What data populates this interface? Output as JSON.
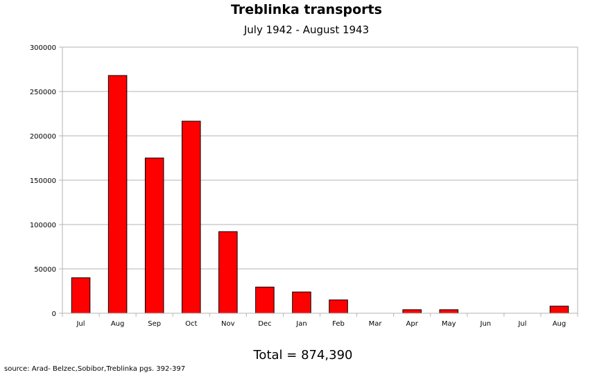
{
  "chart_data": {
    "type": "bar",
    "title": "Treblinka transports",
    "subtitle": "July 1942 - August 1943",
    "xlabel": "",
    "ylabel": "",
    "categories": [
      "Jul",
      "Aug",
      "Sep",
      "Oct",
      "Nov",
      "Dec",
      "Jan",
      "Feb",
      "Mar",
      "Apr",
      "May",
      "Jun",
      "Jul",
      "Aug"
    ],
    "values": [
      40000,
      268000,
      175000,
      216500,
      92000,
      29500,
      24000,
      15000,
      0,
      4000,
      4000,
      0,
      0,
      8000
    ],
    "ylim": [
      0,
      300000
    ],
    "yticks": [
      0,
      50000,
      100000,
      150000,
      200000,
      250000,
      300000
    ],
    "ytick_labels": [
      "0",
      "50000",
      "100000",
      "150000",
      "200000",
      "250000",
      "300000"
    ],
    "grid": true,
    "legend": "none",
    "bar_color": "#ff0000",
    "grid_color": "#b3b3b3"
  },
  "total_label": "Total = 874,390",
  "source": "source: Arad- Belzec,Sobibor,Treblinka  pgs. 392-397"
}
